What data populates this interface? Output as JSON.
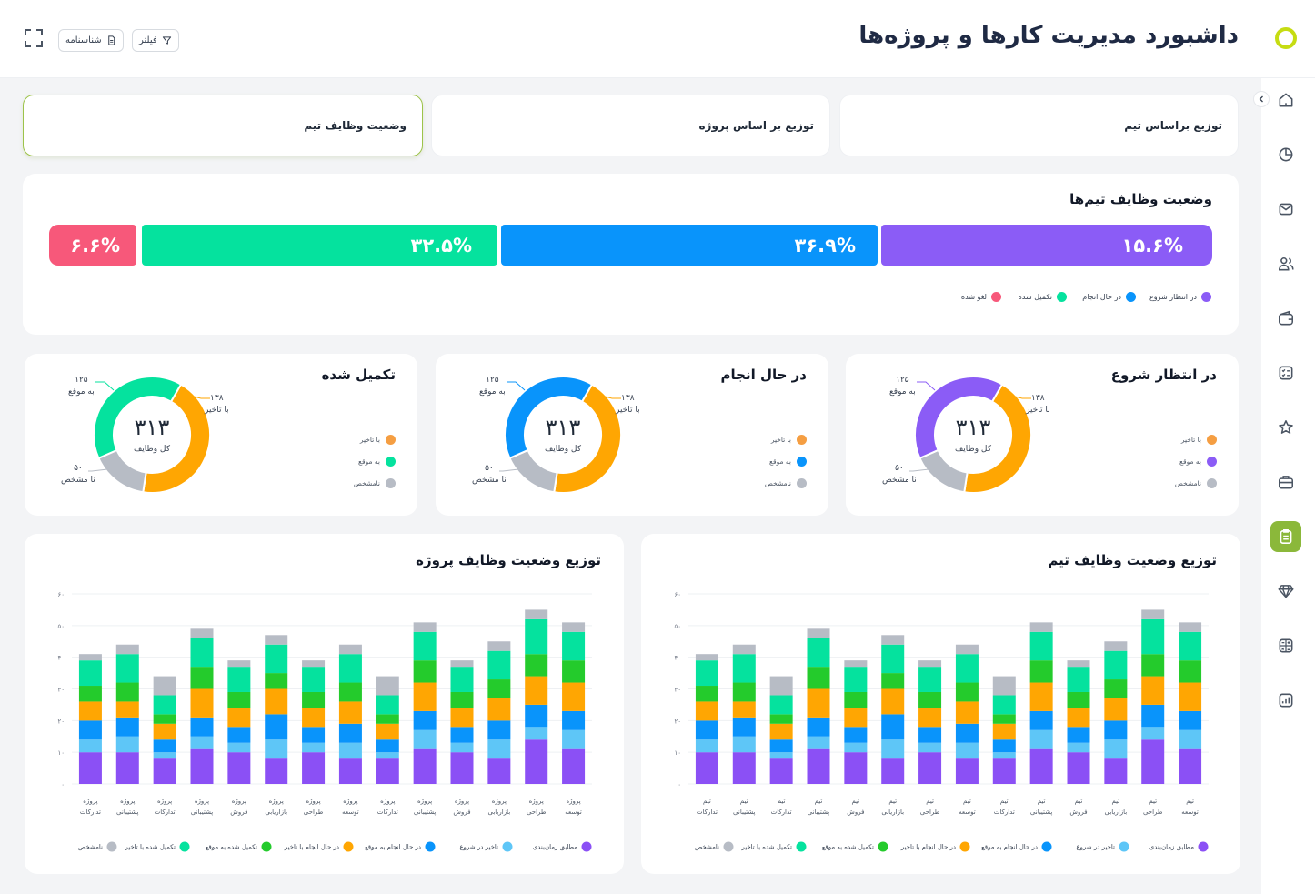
{
  "header": {
    "title": "داشبورد مدیریت کارها و پروژه‌ها",
    "filter_label": "فیلتر",
    "profile_label": "شناسنامه"
  },
  "sidebar": {
    "items": [
      {
        "icon": "home-icon"
      },
      {
        "icon": "pie-chart-icon"
      },
      {
        "icon": "mail-icon"
      },
      {
        "icon": "users-icon"
      },
      {
        "icon": "wallet-icon"
      },
      {
        "icon": "checklist-icon"
      },
      {
        "icon": "star-icon"
      },
      {
        "icon": "briefcase-icon"
      },
      {
        "icon": "clipboard-icon",
        "active": true
      },
      {
        "icon": "diamond-icon"
      },
      {
        "icon": "calculator-icon"
      },
      {
        "icon": "report-icon"
      }
    ]
  },
  "tabs": [
    {
      "label": "توزیع براساس تیم"
    },
    {
      "label": "توزیع بر اساس پروژه"
    },
    {
      "label": "وضعیت وظایف تیم",
      "active": true
    }
  ],
  "team_status": {
    "title": "وضعیت وظایف تیم‌ها",
    "segments": [
      {
        "label": "در انتظار شروع",
        "percent_text": "۱۵.۶%",
        "value": 15.6,
        "color": "#8b5cf6"
      },
      {
        "label": "در حال انجام",
        "percent_text": "۳۶.۹%",
        "value": 36.9,
        "color": "#0994fb"
      },
      {
        "label": "تکمیل شده",
        "percent_text": "۳۲.۵%",
        "value": 32.5,
        "color": "#05e29e"
      },
      {
        "label": "لغو شده",
        "percent_text": "۶.۶%",
        "value": 6.6,
        "color": "#f7587a"
      }
    ]
  },
  "donuts": [
    {
      "title": "در انتظار شروع",
      "main_color": "#8b5cf6",
      "total": "۳۱۳",
      "total_label": "کل وظایف",
      "late_value": "۱۳۸",
      "late_label": "با تاخیر",
      "ontime_value": "۱۲۵",
      "ontime_label": "به موقع",
      "unknown_value": "۵۰",
      "unknown_label": "نا مشخص",
      "legend": [
        "با تاخیر",
        "به موقع",
        "نامشخص"
      ],
      "legend_colors": [
        "#f59e42",
        "#8b5cf6",
        "#b7bcc5"
      ]
    },
    {
      "title": "در حال انجام",
      "main_color": "#0994fb",
      "total": "۳۱۳",
      "total_label": "کل وظایف",
      "late_value": "۱۳۸",
      "late_label": "با تاخیر",
      "ontime_value": "۱۲۵",
      "ontime_label": "به موقع",
      "unknown_value": "۵۰",
      "unknown_label": "نا مشخص",
      "legend": [
        "با تاخیر",
        "به موقع",
        "نامشخص"
      ],
      "legend_colors": [
        "#f59e42",
        "#0994fb",
        "#b7bcc5"
      ]
    },
    {
      "title": "تکمیل شده",
      "main_color": "#05e29e",
      "total": "۳۱۳",
      "total_label": "کل وظایف",
      "late_value": "۱۳۸",
      "late_label": "با تاخیر",
      "ontime_value": "۱۲۵",
      "ontime_label": "به موقع",
      "unknown_value": "۵۰",
      "unknown_label": "نا مشخص",
      "legend": [
        "با تاخیر",
        "به موقع",
        "نامشخص"
      ],
      "legend_colors": [
        "#f59e42",
        "#05e29e",
        "#b7bcc5"
      ]
    }
  ],
  "donut_values": {
    "late": 138,
    "ontime": 125,
    "unknown": 50
  },
  "chart_colors": {
    "late": "#ffa602",
    "unknown": "#b7bcc5"
  },
  "chart_data": [
    {
      "type": "bar",
      "stacked": true,
      "title": "توزیع وضعیت وظایف تیم",
      "ylim": [
        0,
        60
      ],
      "yticks": [
        "۰",
        "۱۰",
        "۲۰",
        "۳۰",
        "۴۰",
        "۵۰",
        "۶۰"
      ],
      "categories": [
        [
          "تیم",
          "تدارکات"
        ],
        [
          "تیم",
          "پشتیبانی"
        ],
        [
          "تیم",
          "تدارکات"
        ],
        [
          "تیم",
          "پشتیبانی"
        ],
        [
          "تیم",
          "فروش"
        ],
        [
          "تیم",
          "بازاریابی"
        ],
        [
          "تیم",
          "طراحی"
        ],
        [
          "تیم",
          "توسعه"
        ],
        [
          "تیم",
          "تدارکات"
        ],
        [
          "تیم",
          "پشتیبانی"
        ],
        [
          "تیم",
          "فروش"
        ],
        [
          "تیم",
          "بازاریابی"
        ],
        [
          "تیم",
          "طراحی"
        ],
        [
          "تیم",
          "توسعه"
        ]
      ],
      "series": [
        {
          "name": "مطابق زمان‌بندی",
          "color": "#8b50f5",
          "values": [
            10,
            10,
            8,
            11,
            10,
            8,
            10,
            8,
            8,
            11,
            10,
            8,
            14,
            11
          ]
        },
        {
          "name": "تاخیر در شروع",
          "color": "#5ec6f7",
          "values": [
            4,
            5,
            2,
            4,
            3,
            6,
            3,
            5,
            2,
            6,
            3,
            6,
            4,
            6
          ]
        },
        {
          "name": "در حال انجام به موقع",
          "color": "#0994fb",
          "values": [
            6,
            6,
            4,
            6,
            5,
            8,
            5,
            6,
            4,
            6,
            5,
            6,
            7,
            6
          ]
        },
        {
          "name": "در حال انجام با تاخیر",
          "color": "#ffa602",
          "values": [
            6,
            5,
            5,
            9,
            6,
            8,
            6,
            7,
            5,
            9,
            6,
            7,
            9,
            9
          ]
        },
        {
          "name": "تکمیل شده به موقع",
          "color": "#24cb2c",
          "values": [
            5,
            6,
            3,
            7,
            5,
            5,
            5,
            6,
            3,
            7,
            5,
            6,
            7,
            7
          ]
        },
        {
          "name": "تکمیل شده با تاخیر",
          "color": "#05e29e",
          "values": [
            8,
            9,
            6,
            9,
            8,
            9,
            8,
            9,
            6,
            9,
            8,
            9,
            11,
            9
          ]
        },
        {
          "name": "نامشخص",
          "color": "#b7bcc5",
          "values": [
            2,
            3,
            6,
            3,
            2,
            3,
            2,
            3,
            6,
            3,
            2,
            3,
            3,
            3
          ]
        }
      ]
    },
    {
      "type": "bar",
      "stacked": true,
      "title": "توزیع وضعیت وظایف پروژه",
      "ylim": [
        0,
        60
      ],
      "yticks": [
        "۰",
        "۱۰",
        "۲۰",
        "۳۰",
        "۴۰",
        "۵۰",
        "۶۰"
      ],
      "categories": [
        [
          "پروژه",
          "تدارکات"
        ],
        [
          "پروژه",
          "پشتیبانی"
        ],
        [
          "پروژه",
          "تدارکات"
        ],
        [
          "پروژه",
          "پشتیبانی"
        ],
        [
          "پروژه",
          "فروش"
        ],
        [
          "پروژه",
          "بازاریابی"
        ],
        [
          "پروژه",
          "طراحی"
        ],
        [
          "پروژه",
          "توسعه"
        ],
        [
          "پروژه",
          "تدارکات"
        ],
        [
          "پروژه",
          "پشتیبانی"
        ],
        [
          "پروژه",
          "فروش"
        ],
        [
          "پروژه",
          "بازاریابی"
        ],
        [
          "پروژه",
          "طراحی"
        ],
        [
          "پروژه",
          "توسعه"
        ]
      ],
      "series": [
        {
          "name": "مطابق زمان‌بندی",
          "color": "#8b50f5",
          "values": [
            10,
            10,
            8,
            11,
            10,
            8,
            10,
            8,
            8,
            11,
            10,
            8,
            14,
            11
          ]
        },
        {
          "name": "تاخیر در شروع",
          "color": "#5ec6f7",
          "values": [
            4,
            5,
            2,
            4,
            3,
            6,
            3,
            5,
            2,
            6,
            3,
            6,
            4,
            6
          ]
        },
        {
          "name": "در حال انجام به موقع",
          "color": "#0994fb",
          "values": [
            6,
            6,
            4,
            6,
            5,
            8,
            5,
            6,
            4,
            6,
            5,
            6,
            7,
            6
          ]
        },
        {
          "name": "در حال انجام با تاخیر",
          "color": "#ffa602",
          "values": [
            6,
            5,
            5,
            9,
            6,
            8,
            6,
            7,
            5,
            9,
            6,
            7,
            9,
            9
          ]
        },
        {
          "name": "تکمیل شده به موقع",
          "color": "#24cb2c",
          "values": [
            5,
            6,
            3,
            7,
            5,
            5,
            5,
            6,
            3,
            7,
            5,
            6,
            7,
            7
          ]
        },
        {
          "name": "تکمیل شده با تاخیر",
          "color": "#05e29e",
          "values": [
            8,
            9,
            6,
            9,
            8,
            9,
            8,
            9,
            6,
            9,
            8,
            9,
            11,
            9
          ]
        },
        {
          "name": "نامشخص",
          "color": "#b7bcc5",
          "values": [
            2,
            3,
            6,
            3,
            2,
            3,
            2,
            3,
            6,
            3,
            2,
            3,
            3,
            3
          ]
        }
      ]
    }
  ]
}
